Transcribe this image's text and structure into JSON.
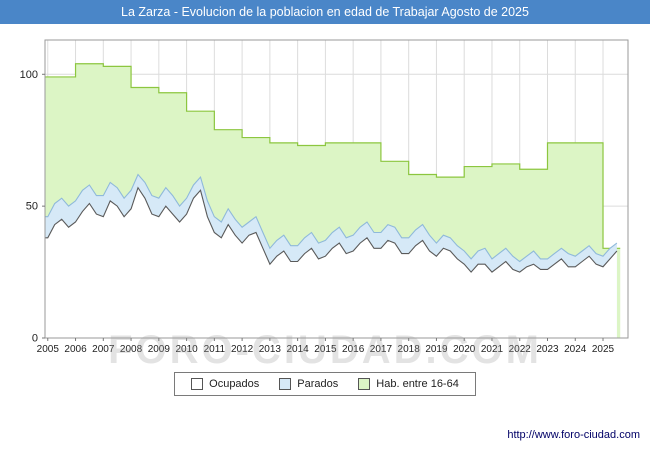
{
  "title_bar": {
    "text": "La Zarza - Evolucion de la poblacion en edad de Trabajar Agosto de 2025",
    "bg": "#4a86c8",
    "fg": "#ffffff"
  },
  "watermark": "FORO-CIUDAD.COM",
  "footer": {
    "url": "http://www.foro-ciudad.com"
  },
  "chart_data": {
    "type": "area",
    "title": "La Zarza - Evolucion de la poblacion en edad de Trabajar Agosto de 2025",
    "xlabel": "",
    "ylabel": "",
    "xlim": [
      2004.9,
      2025.9
    ],
    "ylim": [
      0,
      113
    ],
    "yticks": [
      0,
      50,
      100
    ],
    "xticks": [
      2005,
      2006,
      2007,
      2008,
      2009,
      2010,
      2011,
      2012,
      2013,
      2014,
      2015,
      2016,
      2017,
      2018,
      2019,
      2020,
      2021,
      2022,
      2023,
      2024,
      2025
    ],
    "grid": true,
    "legend_position": "bottom",
    "x_start": 2005.0,
    "x_step": 0.25,
    "series": [
      {
        "name": "Ocupados",
        "type": "line-area",
        "fill": "#ffffff",
        "stroke": "#5a5a5a",
        "values": [
          38,
          43,
          45,
          42,
          44,
          48,
          51,
          47,
          46,
          52,
          50,
          46,
          49,
          57,
          53,
          47,
          46,
          50,
          47,
          44,
          47,
          53,
          56,
          46,
          40,
          38,
          43,
          39,
          36,
          39,
          40,
          34,
          28,
          31,
          33,
          29,
          29,
          32,
          34,
          30,
          31,
          34,
          36,
          32,
          33,
          36,
          38,
          34,
          34,
          37,
          36,
          32,
          32,
          35,
          37,
          33,
          31,
          34,
          33,
          30,
          28,
          25,
          28,
          28,
          25,
          27,
          29,
          26,
          25,
          27,
          28,
          26,
          26,
          28,
          30,
          27,
          27,
          29,
          31,
          28,
          27,
          30,
          33
        ]
      },
      {
        "name": "Parados",
        "type": "line-area",
        "note": "values are stacked top line (Ocupados + Parados)",
        "fill": "#d6e9f7",
        "stroke": "#8fb9da",
        "values": [
          46,
          51,
          53,
          50,
          52,
          56,
          58,
          54,
          54,
          59,
          57,
          53,
          56,
          62,
          59,
          54,
          53,
          57,
          54,
          50,
          53,
          58,
          61,
          52,
          46,
          44,
          49,
          45,
          42,
          44,
          46,
          40,
          34,
          37,
          39,
          35,
          35,
          38,
          40,
          36,
          37,
          40,
          42,
          38,
          39,
          42,
          44,
          40,
          40,
          43,
          42,
          38,
          38,
          41,
          43,
          39,
          36,
          39,
          38,
          35,
          33,
          30,
          33,
          34,
          30,
          32,
          34,
          31,
          29,
          31,
          33,
          30,
          30,
          32,
          34,
          32,
          31,
          33,
          35,
          32,
          31,
          34,
          36
        ]
      },
      {
        "name": "Hab. entre 16-64",
        "type": "step-area",
        "fill": "#dcf5c5",
        "stroke": "#8cc63f",
        "years": [
          2005,
          2006,
          2007,
          2008,
          2009,
          2010,
          2011,
          2012,
          2013,
          2014,
          2015,
          2016,
          2017,
          2018,
          2019,
          2020,
          2021,
          2022,
          2023,
          2024,
          2025
        ],
        "values": [
          99,
          104,
          103,
          95,
          93,
          86,
          79,
          76,
          74,
          73,
          74,
          74,
          67,
          62,
          61,
          65,
          66,
          64,
          74,
          74,
          34
        ],
        "x_end": 2025.62
      }
    ]
  }
}
